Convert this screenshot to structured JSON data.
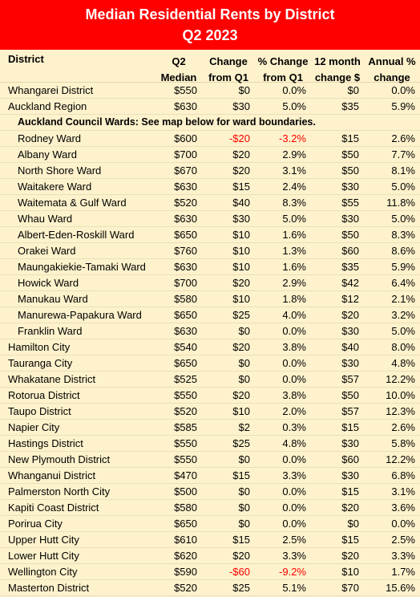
{
  "title": "Median Residential Rents by District",
  "subtitle": "Q2 2023",
  "headers": {
    "district": "District",
    "q2_median": [
      "Q2",
      "Median"
    ],
    "change": [
      "Change",
      "from Q1"
    ],
    "pct_change": [
      "% Change",
      "from Q1"
    ],
    "twelve_month": [
      "12 month",
      "change $"
    ],
    "annual": [
      "Annual %",
      "change"
    ]
  },
  "top_rows": [
    {
      "name": "Whangarei District",
      "median": "$550",
      "change": "$0",
      "pct": "0.0%",
      "m12": "$0",
      "annual": "0.0%"
    },
    {
      "name": "Auckland Region",
      "median": "$630",
      "change": "$30",
      "pct": "5.0%",
      "m12": "$35",
      "annual": "5.9%"
    }
  ],
  "section_note": "Auckland Council Wards: See map below for ward boundaries.",
  "ward_rows": [
    {
      "name": "Rodney Ward",
      "median": "$600",
      "change": "-$20",
      "pct": "-3.2%",
      "m12": "$15",
      "annual": "2.6%",
      "negative": true
    },
    {
      "name": "Albany Ward",
      "median": "$700",
      "change": "$20",
      "pct": "2.9%",
      "m12": "$50",
      "annual": "7.7%"
    },
    {
      "name": "North Shore Ward",
      "median": "$670",
      "change": "$20",
      "pct": "3.1%",
      "m12": "$50",
      "annual": "8.1%"
    },
    {
      "name": "Waitakere Ward",
      "median": "$630",
      "change": "$15",
      "pct": "2.4%",
      "m12": "$30",
      "annual": "5.0%"
    },
    {
      "name": "Waitemata & Gulf Ward",
      "median": "$520",
      "change": "$40",
      "pct": "8.3%",
      "m12": "$55",
      "annual": "11.8%"
    },
    {
      "name": "Whau Ward",
      "median": "$630",
      "change": "$30",
      "pct": "5.0%",
      "m12": "$30",
      "annual": "5.0%"
    },
    {
      "name": "Albert-Eden-Roskill Ward",
      "median": "$650",
      "change": "$10",
      "pct": "1.6%",
      "m12": "$50",
      "annual": "8.3%"
    },
    {
      "name": "Orakei Ward",
      "median": "$760",
      "change": "$10",
      "pct": "1.3%",
      "m12": "$60",
      "annual": "8.6%"
    },
    {
      "name": "Maungakiekie-Tamaki Ward",
      "median": "$630",
      "change": "$10",
      "pct": "1.6%",
      "m12": "$35",
      "annual": "5.9%"
    },
    {
      "name": "Howick Ward",
      "median": "$700",
      "change": "$20",
      "pct": "2.9%",
      "m12": "$42",
      "annual": "6.4%"
    },
    {
      "name": "Manukau Ward",
      "median": "$580",
      "change": "$10",
      "pct": "1.8%",
      "m12": "$12",
      "annual": "2.1%"
    },
    {
      "name": "Manurewa-Papakura Ward",
      "median": "$650",
      "change": "$25",
      "pct": "4.0%",
      "m12": "$20",
      "annual": "3.2%"
    },
    {
      "name": "Franklin Ward",
      "median": "$630",
      "change": "$0",
      "pct": "0.0%",
      "m12": "$30",
      "annual": "5.0%"
    }
  ],
  "bottom_rows": [
    {
      "name": "Hamilton City",
      "median": "$540",
      "change": "$20",
      "pct": "3.8%",
      "m12": "$40",
      "annual": "8.0%"
    },
    {
      "name": "Tauranga City",
      "median": "$650",
      "change": "$0",
      "pct": "0.0%",
      "m12": "$30",
      "annual": "4.8%"
    },
    {
      "name": "Whakatane District",
      "median": "$525",
      "change": "$0",
      "pct": "0.0%",
      "m12": "$57",
      "annual": "12.2%"
    },
    {
      "name": "Rotorua District",
      "median": "$550",
      "change": "$20",
      "pct": "3.8%",
      "m12": "$50",
      "annual": "10.0%"
    },
    {
      "name": "Taupo District",
      "median": "$520",
      "change": "$10",
      "pct": "2.0%",
      "m12": "$57",
      "annual": "12.3%"
    },
    {
      "name": "Napier City",
      "median": "$585",
      "change": "$2",
      "pct": "0.3%",
      "m12": "$15",
      "annual": "2.6%"
    },
    {
      "name": "Hastings District",
      "median": "$550",
      "change": "$25",
      "pct": "4.8%",
      "m12": "$30",
      "annual": "5.8%"
    },
    {
      "name": "New Plymouth District",
      "median": "$550",
      "change": "$0",
      "pct": "0.0%",
      "m12": "$60",
      "annual": "12.2%"
    },
    {
      "name": "Whanganui District",
      "median": "$470",
      "change": "$15",
      "pct": "3.3%",
      "m12": "$30",
      "annual": "6.8%"
    },
    {
      "name": "Palmerston North City",
      "median": "$500",
      "change": "$0",
      "pct": "0.0%",
      "m12": "$15",
      "annual": "3.1%"
    },
    {
      "name": "Kapiti Coast District",
      "median": "$580",
      "change": "$0",
      "pct": "0.0%",
      "m12": "$20",
      "annual": "3.6%"
    },
    {
      "name": "Porirua City",
      "median": "$650",
      "change": "$0",
      "pct": "0.0%",
      "m12": "$0",
      "annual": "0.0%"
    },
    {
      "name": "Upper Hutt City",
      "median": "$610",
      "change": "$15",
      "pct": "2.5%",
      "m12": "$15",
      "annual": "2.5%"
    },
    {
      "name": "Lower Hutt City",
      "median": "$620",
      "change": "$20",
      "pct": "3.3%",
      "m12": "$20",
      "annual": "3.3%"
    },
    {
      "name": "Wellington City",
      "median": "$590",
      "change": "-$60",
      "pct": "-9.2%",
      "m12": "$10",
      "annual": "1.7%",
      "negative": true
    },
    {
      "name": "Masterton District",
      "median": "$520",
      "change": "$25",
      "pct": "5.1%",
      "m12": "$70",
      "annual": "15.6%"
    }
  ],
  "colors": {
    "title_bg": "#fe0000",
    "table_bg": "#fef2cc",
    "negative": "#ff0000"
  }
}
